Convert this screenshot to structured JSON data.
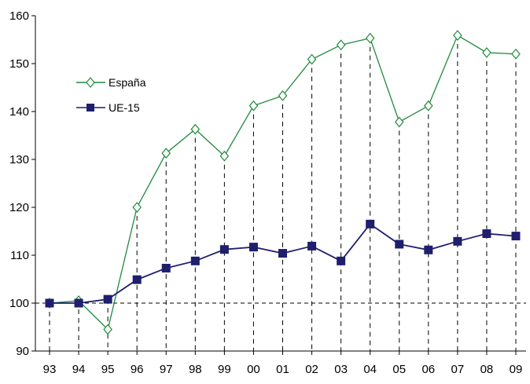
{
  "chart_data": {
    "type": "line",
    "categories": [
      "93",
      "94",
      "95",
      "96",
      "97",
      "98",
      "99",
      "00",
      "01",
      "02",
      "03",
      "04",
      "05",
      "06",
      "07",
      "08",
      "09"
    ],
    "ylim": [
      90,
      160
    ],
    "yticks": [
      90,
      100,
      110,
      120,
      130,
      140,
      150,
      160
    ],
    "reference_line": 100,
    "grid": false,
    "legend_position": "upper-left",
    "series": [
      {
        "name": "España",
        "color": "#1f8a3c",
        "marker": "diamond-open",
        "values": [
          100,
          100.5,
          94.5,
          120,
          131.3,
          136.3,
          130.7,
          141.2,
          143.3,
          150.9,
          153.9,
          155.3,
          137.8,
          141.2,
          155.9,
          152.3,
          152.0
        ]
      },
      {
        "name": "UE-15",
        "color": "#1f1f6e",
        "marker": "square-filled",
        "values": [
          100,
          100,
          100.8,
          104.9,
          107.3,
          108.8,
          111.2,
          111.7,
          110.4,
          111.9,
          108.8,
          116.5,
          112.3,
          111.1,
          112.9,
          114.5,
          114.0
        ]
      }
    ]
  }
}
